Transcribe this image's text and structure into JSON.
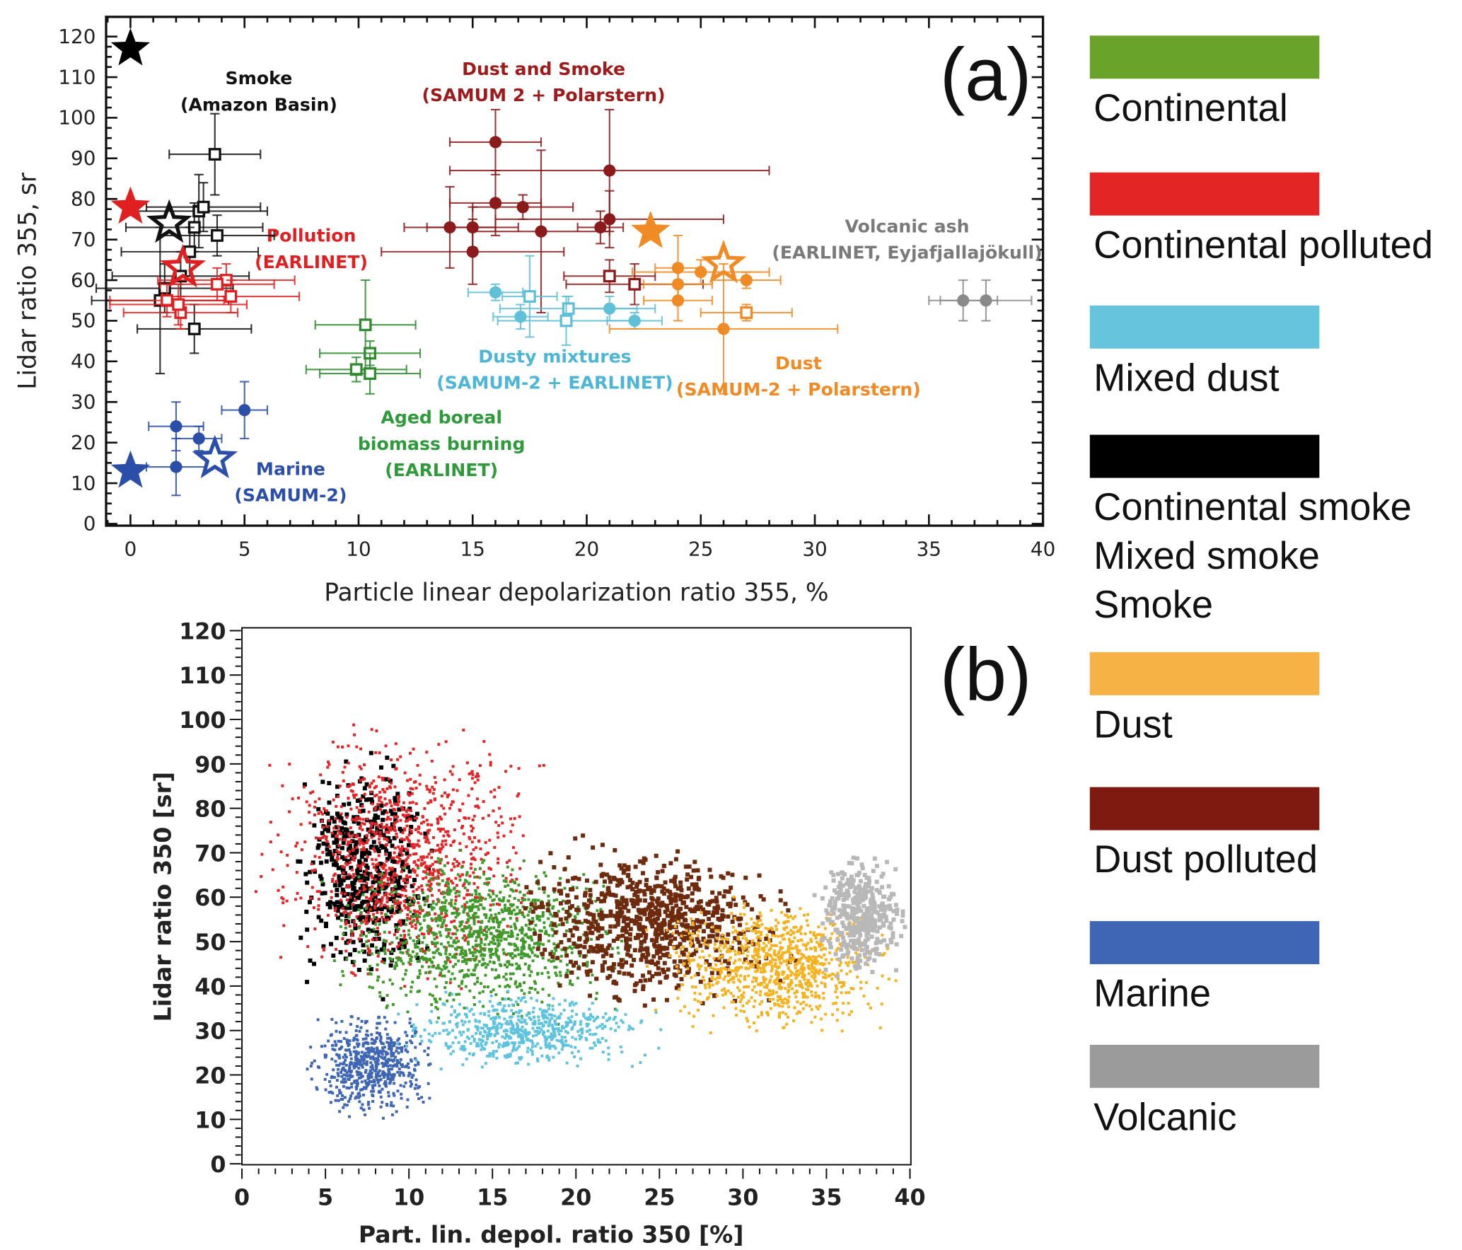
{
  "chart_data": [
    {
      "type": "scatter",
      "panel_label": "(a)",
      "xlabel": "Particle linear depolarization ratio 355, %",
      "ylabel": "Lidar ratio 355, sr",
      "xlim": [
        0,
        40
      ],
      "ylim": [
        0,
        120
      ],
      "xticks": [
        "0",
        "5",
        "10",
        "15",
        "20",
        "25",
        "30",
        "35",
        "40"
      ],
      "yticks": [
        "0",
        "10",
        "20",
        "30",
        "40",
        "50",
        "60",
        "70",
        "80",
        "90",
        "100",
        "110",
        "120"
      ],
      "grid": false,
      "annotations": [
        {
          "lines": [
            "Smoke",
            "(Amazon Basin)"
          ],
          "color": "#111111"
        },
        {
          "lines": [
            "Dust and Smoke",
            "(SAMUM 2 + Polarstern)"
          ],
          "color": "#9e1b1b"
        },
        {
          "lines": [
            "Pollution",
            "(EARLINET)"
          ],
          "color": "#e02020"
        },
        {
          "lines": [
            "Volcanic ash",
            "(EARLINET, Eyjafjallajökull)"
          ],
          "color": "#7a7a7a"
        },
        {
          "lines": [
            "Dusty mixtures",
            "(SAMUM-2 + EARLINET)"
          ],
          "color": "#4db6d6"
        },
        {
          "lines": [
            "Dust",
            "(SAMUM-2 + Polarstern)"
          ],
          "color": "#f08a24"
        },
        {
          "lines": [
            "Aged boreal",
            "biomass burning",
            "(EARLINET)"
          ],
          "color": "#2e9a3a"
        },
        {
          "lines": [
            "Marine",
            "(SAMUM-2)"
          ],
          "color": "#2b4ea8"
        }
      ],
      "series": [
        {
          "group": "Smoke",
          "color": "#111111",
          "marker": "open-square",
          "points": [
            {
              "x": 3.7,
              "y": 91,
              "xerr": 2,
              "yerr": 10
            },
            {
              "x": 3.0,
              "y": 77,
              "xerr": 3,
              "yerr": 9
            },
            {
              "x": 3.2,
              "y": 78,
              "xerr": 2.5,
              "yerr": 6
            },
            {
              "x": 2.8,
              "y": 73,
              "xerr": 3,
              "yerr": 6
            },
            {
              "x": 3.8,
              "y": 71,
              "xerr": 2.5,
              "yerr": 5
            },
            {
              "x": 2.6,
              "y": 67,
              "xerr": 3,
              "yerr": 6
            },
            {
              "x": 2.2,
              "y": 61,
              "xerr": 3,
              "yerr": 6
            },
            {
              "x": 1.5,
              "y": 58,
              "xerr": 3,
              "yerr": 6
            },
            {
              "x": 1.3,
              "y": 55,
              "xerr": 3,
              "yerr": 18
            },
            {
              "x": 2.8,
              "y": 48,
              "xerr": 2.5,
              "yerr": 6
            }
          ]
        },
        {
          "group": "Pollution",
          "color": "#e02020",
          "marker": "open-square",
          "points": [
            {
              "x": 4.2,
              "y": 60,
              "xerr": 3,
              "yerr": 4
            },
            {
              "x": 4.4,
              "y": 56,
              "xerr": 3,
              "yerr": 4
            },
            {
              "x": 3.8,
              "y": 59,
              "xerr": 2.5,
              "yerr": 4
            },
            {
              "x": 1.6,
              "y": 55,
              "xerr": 2.5,
              "yerr": 4
            },
            {
              "x": 2.2,
              "y": 52,
              "xerr": 2.5,
              "yerr": 4
            },
            {
              "x": 2.1,
              "y": 54,
              "xerr": 3,
              "yerr": 5
            }
          ]
        },
        {
          "group": "Dust and Smoke",
          "color": "#8b1a1a",
          "marker": "filled-circle",
          "points": [
            {
              "x": 16,
              "y": 94,
              "xerr": 2,
              "yerr": 8
            },
            {
              "x": 21,
              "y": 87,
              "xerr": 7,
              "yerr": 15
            },
            {
              "x": 16,
              "y": 79,
              "xerr": 2,
              "yerr": 8
            },
            {
              "x": 17.2,
              "y": 78,
              "xerr": 2.2,
              "yerr": 3
            },
            {
              "x": 14,
              "y": 73,
              "xerr": 2,
              "yerr": 10
            },
            {
              "x": 15,
              "y": 73,
              "xerr": 2,
              "yerr": 5
            },
            {
              "x": 18,
              "y": 72,
              "xerr": 3,
              "yerr": 20
            },
            {
              "x": 20.6,
              "y": 73,
              "xerr": 1,
              "yerr": 4
            },
            {
              "x": 21,
              "y": 75,
              "xerr": 5,
              "yerr": 7
            },
            {
              "x": 15,
              "y": 67,
              "xerr": 4,
              "yerr": 8
            }
          ]
        },
        {
          "group": "Dust and Smoke",
          "color": "#8b1a1a",
          "marker": "open-square",
          "points": [
            {
              "x": 21,
              "y": 61,
              "xerr": 2,
              "yerr": 4
            },
            {
              "x": 22.1,
              "y": 59,
              "xerr": 3,
              "yerr": 5
            }
          ]
        },
        {
          "group": "Dusty mixtures",
          "color": "#5fc0d8",
          "marker": "filled-circle",
          "points": [
            {
              "x": 16,
              "y": 57,
              "xerr": 1.2,
              "yerr": 2
            },
            {
              "x": 17.1,
              "y": 51,
              "xerr": 1.2,
              "yerr": 3
            },
            {
              "x": 21,
              "y": 53,
              "xerr": 2,
              "yerr": 3
            },
            {
              "x": 22.1,
              "y": 50,
              "xerr": 1.2,
              "yerr": 2
            }
          ]
        },
        {
          "group": "Dusty mixtures",
          "color": "#5fc0d8",
          "marker": "open-square",
          "points": [
            {
              "x": 17.5,
              "y": 56,
              "xerr": 1.2,
              "yerr": 10
            },
            {
              "x": 19.2,
              "y": 53,
              "xerr": 3,
              "yerr": 3
            },
            {
              "x": 19.1,
              "y": 50,
              "xerr": 3,
              "yerr": 6
            }
          ]
        },
        {
          "group": "Dust",
          "color": "#f08a24",
          "marker": "filled-circle",
          "points": [
            {
              "x": 24,
              "y": 63,
              "xerr": 1,
              "yerr": 8
            },
            {
              "x": 24,
              "y": 59,
              "xerr": 1.5,
              "yerr": 5
            },
            {
              "x": 24,
              "y": 55,
              "xerr": 1.5,
              "yerr": 5
            },
            {
              "x": 25,
              "y": 62,
              "xerr": 3,
              "yerr": 3
            },
            {
              "x": 27,
              "y": 60,
              "xerr": 1.5,
              "yerr": 2
            },
            {
              "x": 26,
              "y": 48,
              "xerr": 5,
              "yerr": 16
            }
          ]
        },
        {
          "group": "Dust",
          "color": "#f08a24",
          "marker": "open-square",
          "points": [
            {
              "x": 27,
              "y": 52,
              "xerr": 2,
              "yerr": 2
            }
          ]
        },
        {
          "group": "Aged boreal biomass burning",
          "color": "#2e8b2e",
          "marker": "open-square",
          "points": [
            {
              "x": 10.3,
              "y": 49,
              "xerr": 2.2,
              "yerr": 11
            },
            {
              "x": 10.5,
              "y": 42,
              "xerr": 2.2,
              "yerr": 3
            },
            {
              "x": 9.9,
              "y": 38,
              "xerr": 2.2,
              "yerr": 3
            },
            {
              "x": 10.5,
              "y": 37,
              "xerr": 2.2,
              "yerr": 5
            }
          ]
        },
        {
          "group": "Marine",
          "color": "#2b4ea8",
          "marker": "filled-circle",
          "points": [
            {
              "x": 2,
              "y": 24,
              "xerr": 1.2,
              "yerr": 6
            },
            {
              "x": 3,
              "y": 21,
              "xerr": 1,
              "yerr": 3
            },
            {
              "x": 2,
              "y": 14,
              "xerr": 1.3,
              "yerr": 7
            },
            {
              "x": 5,
              "y": 28,
              "xerr": 1,
              "yerr": 7
            }
          ]
        },
        {
          "group": "Volcanic ash",
          "color": "#8a8a8a",
          "marker": "filled-circle",
          "points": [
            {
              "x": 36.5,
              "y": 55,
              "xerr": 1.5,
              "yerr": 5
            },
            {
              "x": 37.5,
              "y": 55,
              "xerr": 2,
              "yerr": 5
            }
          ]
        },
        {
          "group": "Stars",
          "color": "#000000",
          "marker": "filled-star",
          "points": [
            {
              "x": 0,
              "y": 117
            }
          ]
        },
        {
          "group": "Stars",
          "color": "#e02020",
          "marker": "filled-star",
          "points": [
            {
              "x": 0,
              "y": 78
            }
          ]
        },
        {
          "group": "Stars",
          "color": "#2b4ea8",
          "marker": "filled-star",
          "points": [
            {
              "x": 0,
              "y": 13
            }
          ]
        },
        {
          "group": "Stars",
          "color": "#f08a24",
          "marker": "filled-star",
          "points": [
            {
              "x": 22.8,
              "y": 72
            }
          ]
        },
        {
          "group": "Stars",
          "color": "#111111",
          "marker": "open-star",
          "points": [
            {
              "x": 1.7,
              "y": 74
            }
          ]
        },
        {
          "group": "Stars",
          "color": "#e02020",
          "marker": "open-star",
          "points": [
            {
              "x": 2.3,
              "y": 63
            }
          ]
        },
        {
          "group": "Stars",
          "color": "#2b4ea8",
          "marker": "open-star",
          "points": [
            {
              "x": 3.7,
              "y": 16
            }
          ]
        },
        {
          "group": "Stars",
          "color": "#f08a24",
          "marker": "open-star",
          "points": [
            {
              "x": 26,
              "y": 64
            }
          ]
        }
      ]
    },
    {
      "type": "scatter",
      "panel_label": "(b)",
      "xlabel": "Part. lin. depol. ratio 350 [%]",
      "ylabel": "Lidar ratio 350 [sr]",
      "xlim": [
        0,
        40
      ],
      "ylim": [
        0,
        120
      ],
      "xticks": [
        "0",
        "5",
        "10",
        "15",
        "20",
        "25",
        "30",
        "35",
        "40"
      ],
      "yticks": [
        "0",
        "10",
        "20",
        "30",
        "40",
        "50",
        "60",
        "70",
        "80",
        "90",
        "100",
        "110",
        "120"
      ],
      "grid": false,
      "clusters": [
        {
          "name": "Continental smoke / Mixed smoke / Smoke",
          "color": "#000000",
          "x_range": [
            2.5,
            12
          ],
          "y_range": [
            35,
            97
          ]
        },
        {
          "name": "Continental polluted",
          "color": "#e32526",
          "x_range": [
            0.3,
            19
          ],
          "y_range": [
            35,
            102
          ]
        },
        {
          "name": "Continental",
          "color": "#3f9a2a",
          "x_range": [
            4,
            25
          ],
          "y_range": [
            30,
            72
          ]
        },
        {
          "name": "Marine",
          "color": "#3f66b4",
          "x_range": [
            3.5,
            12
          ],
          "y_range": [
            8,
            36
          ]
        },
        {
          "name": "Mixed dust",
          "color": "#5ec3df",
          "x_range": [
            8,
            26
          ],
          "y_range": [
            20,
            40
          ]
        },
        {
          "name": "Dust polluted",
          "color": "#6e2a0c",
          "x_range": [
            15,
            34
          ],
          "y_range": [
            33,
            76
          ]
        },
        {
          "name": "Dust",
          "color": "#f6b21e",
          "x_range": [
            24,
            40
          ],
          "y_range": [
            27,
            62
          ]
        },
        {
          "name": "Volcanic",
          "color": "#b8b8b8",
          "x_range": [
            34,
            40
          ],
          "y_range": [
            40,
            72
          ]
        }
      ]
    }
  ],
  "legend": [
    {
      "labels": [
        "Continental"
      ],
      "color": "#6aa329"
    },
    {
      "labels": [
        "Continental polluted"
      ],
      "color": "#e32526"
    },
    {
      "labels": [
        "Mixed dust"
      ],
      "color": "#66c5dc"
    },
    {
      "labels": [
        "Continental smoke",
        "Mixed smoke",
        "Smoke"
      ],
      "color": "#000000"
    },
    {
      "labels": [
        "Dust"
      ],
      "color": "#f6b245"
    },
    {
      "labels": [
        "Dust polluted"
      ],
      "color": "#7e1a10"
    },
    {
      "labels": [
        "Marine"
      ],
      "color": "#3f66b4"
    },
    {
      "labels": [
        "Volcanic"
      ],
      "color": "#9b9b9b"
    }
  ]
}
